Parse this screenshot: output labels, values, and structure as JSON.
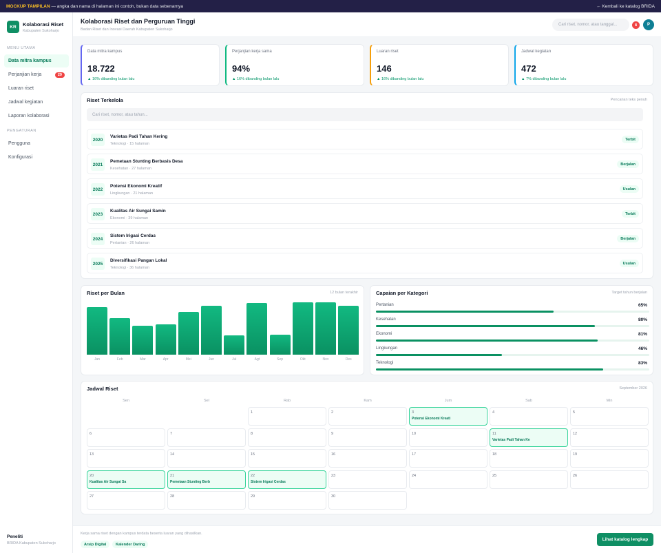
{
  "banner": {
    "tag": "MOCKUP TAMPILAN",
    "text": " — angka dan nama di halaman ini contoh, bukan data sebenarnya",
    "back": "← Kembali ke katalog BRIDA"
  },
  "brand": {
    "logo": "KR",
    "title": "Kolaborasi Riset",
    "subtitle": "Kabupaten Sukoharjo"
  },
  "sidebar": {
    "section_main": "MENU UTAMA",
    "main_items": [
      {
        "label": "Data mitra kampus",
        "active": true
      },
      {
        "label": "Perjanjian kerja",
        "badge": "29"
      },
      {
        "label": "Luaran riset"
      },
      {
        "label": "Jadwal kegiatan"
      },
      {
        "label": "Laporan kolaborasi"
      }
    ],
    "section_settings": "PENGATURAN",
    "settings_items": [
      {
        "label": "Pengguna"
      },
      {
        "label": "Konfigurasi"
      }
    ],
    "user": {
      "name": "Peneliti",
      "role": "BRIDA Kabupaten Sukoharjo"
    }
  },
  "header": {
    "title": "Kolaborasi Riset dan Perguruan Tinggi",
    "subtitle": "Badan Riset dan Inovasi Daerah Kabupaten Sukoharjo",
    "search_placeholder": "Cari riset, nomor, atau tanggal...",
    "notif_count": "8",
    "avatar": "P"
  },
  "colors": {
    "accent": "#0f8f64",
    "stat_borders": [
      "#6366f1",
      "#10b981",
      "#f59e0b",
      "#0ea5e9"
    ]
  },
  "stats": [
    {
      "label": "Data mitra kampus",
      "value": "18.722",
      "change": "▲ 16% dibanding bulan lalu"
    },
    {
      "label": "Perjanjian kerja sama",
      "value": "94%",
      "change": "▲ 16% dibanding bulan lalu"
    },
    {
      "label": "Luaran riset",
      "value": "146",
      "change": "▲ 16% dibanding bulan lalu"
    },
    {
      "label": "Jadwal kegiatan",
      "value": "472",
      "change": "▲ 7% dibanding bulan lalu"
    }
  ],
  "research": {
    "title": "Riset Terkelola",
    "hint": "Pencarian teks penuh",
    "search_placeholder": "Cari riset, nomor, atau tahun...",
    "rows": [
      {
        "year": "2020",
        "title": "Varietas Padi Tahan Kering",
        "meta": "Teknologi · 15 halaman",
        "status": "Terbit"
      },
      {
        "year": "2021",
        "title": "Pemetaan Stunting Berbasis Desa",
        "meta": "Kesehatan · 27 halaman",
        "status": "Berjalan"
      },
      {
        "year": "2022",
        "title": "Potensi Ekonomi Kreatif",
        "meta": "Lingkungan · 21 halaman",
        "status": "Usulan"
      },
      {
        "year": "2023",
        "title": "Kualitas Air Sungai Samin",
        "meta": "Ekonomi · 39 halaman",
        "status": "Terbit"
      },
      {
        "year": "2024",
        "title": "Sistem Irigasi Cerdas",
        "meta": "Pertanian · 26 halaman",
        "status": "Berjalan"
      },
      {
        "year": "2025",
        "title": "Diversifikasi Pangan Lokal",
        "meta": "Teknologi · 36 halaman",
        "status": "Usulan"
      }
    ]
  },
  "monthly": {
    "title": "Riset per Bulan",
    "hint": "12 bulan terakhir"
  },
  "chart_data": {
    "type": "bar",
    "categories": [
      "Jan",
      "Feb",
      "Mar",
      "Apr",
      "Mei",
      "Jun",
      "Jul",
      "Agt",
      "Sep",
      "Okt",
      "Nov",
      "Des"
    ],
    "values": [
      68,
      52,
      41,
      43,
      61,
      70,
      28,
      74,
      29,
      75,
      75,
      70
    ],
    "ylim": [
      0,
      75
    ],
    "grid": false
  },
  "categories": {
    "title": "Capaian per Kategori",
    "hint": "Target tahun berjalan",
    "items": [
      {
        "name": "Pertanian",
        "pct": "65%",
        "value": 65
      },
      {
        "name": "Kesehatan",
        "pct": "80%",
        "value": 80
      },
      {
        "name": "Ekonomi",
        "pct": "81%",
        "value": 81
      },
      {
        "name": "Lingkungan",
        "pct": "46%",
        "value": 46
      },
      {
        "name": "Teknologi",
        "pct": "83%",
        "value": 83
      }
    ]
  },
  "calendar": {
    "title": "Jadwal Riset",
    "month": "September 2026",
    "days": [
      "Sen",
      "Sel",
      "Rab",
      "Kam",
      "Jum",
      "Sab",
      "Min"
    ],
    "start_offset": 2,
    "num_days": 30,
    "events": {
      "3": "Potensi Ekonomi Kreati",
      "11": "Varietas Padi Tahan Ke",
      "20": "Kualitas Air Sungai Sa",
      "21": "Pemetaan Stunting Berb",
      "22": "Sistem Irigasi Cerdas"
    }
  },
  "footer": {
    "text": "Kerja sama riset dengan kampus terdata beserta luaran yang dihasilkan.",
    "chips": [
      "Arsip Digital",
      "Kalender Daring"
    ],
    "button": "Lihat katalog lengkap"
  }
}
